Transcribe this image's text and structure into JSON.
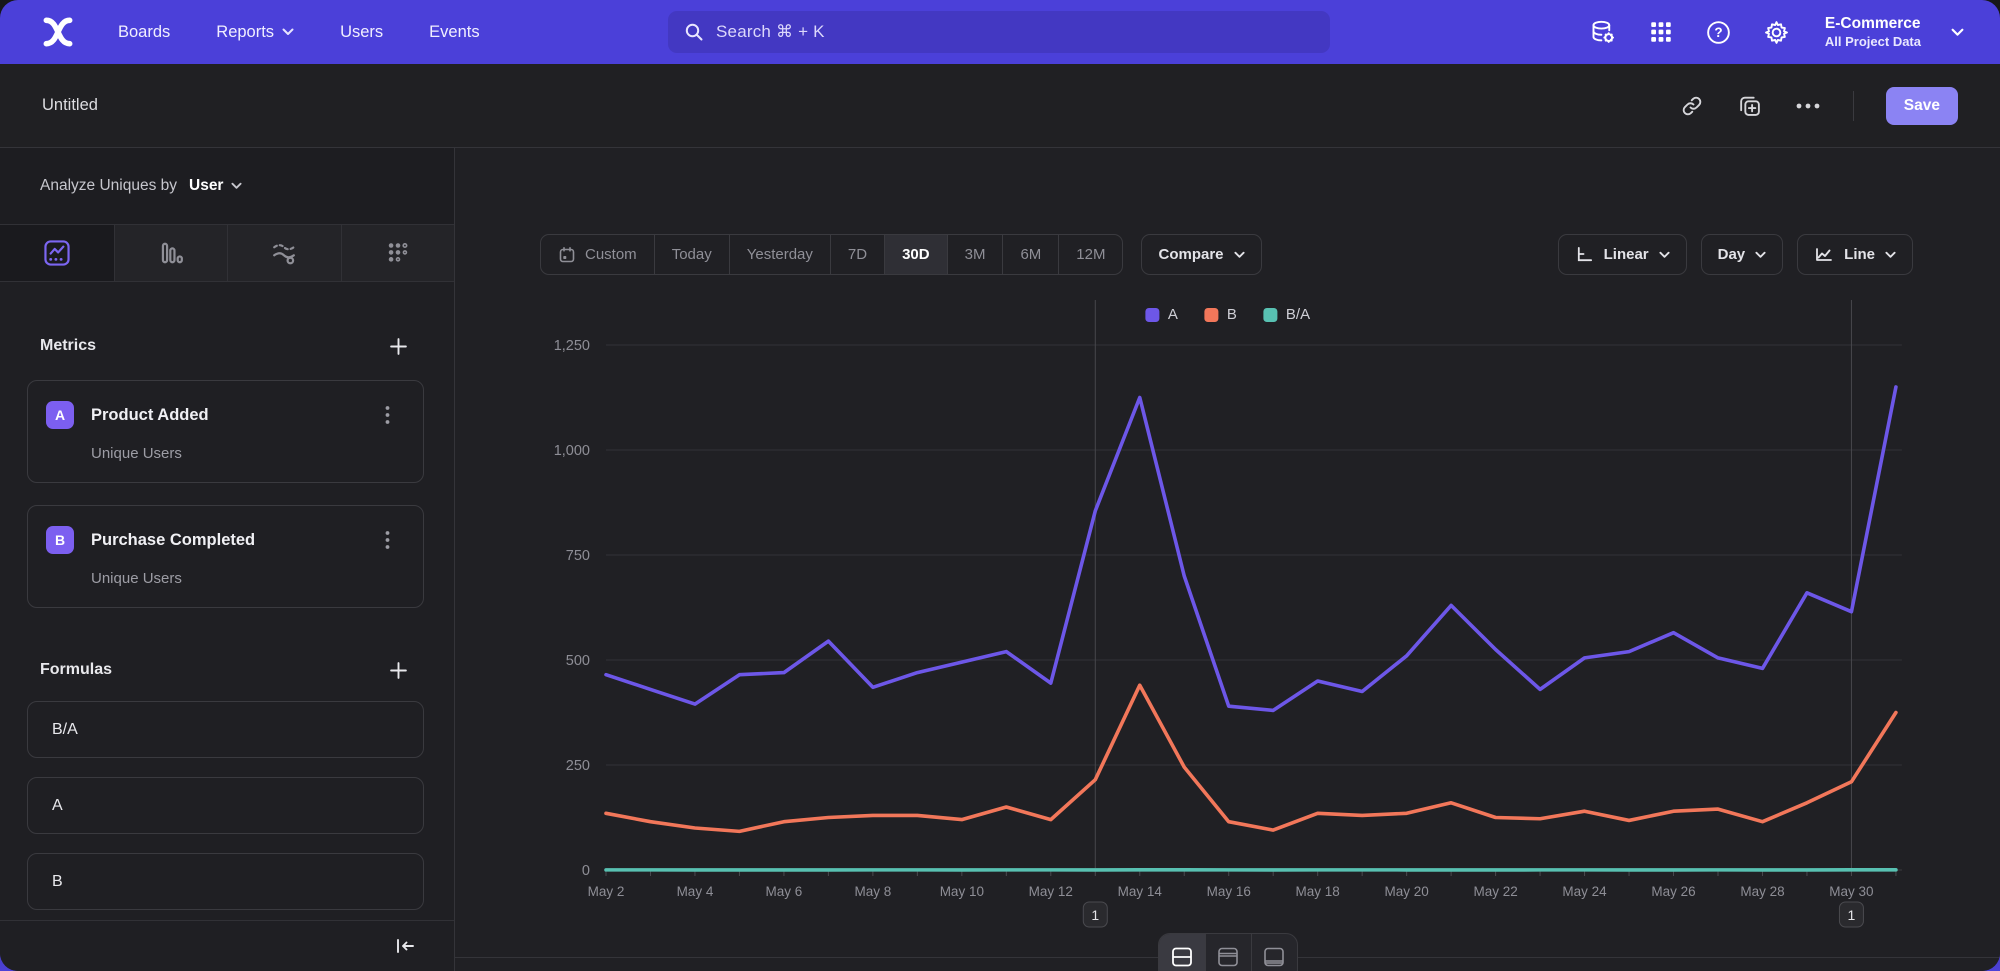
{
  "topnav": {
    "items": [
      "Boards",
      "Reports",
      "Users",
      "Events"
    ],
    "search_placeholder": "Search  ⌘ + K",
    "project_name": "E-Commerce",
    "project_scope": "All Project Data"
  },
  "report_header": {
    "title": "Untitled",
    "save_label": "Save"
  },
  "sidebar": {
    "analyze_prefix": "Analyze Uniques by",
    "analyze_value": "User",
    "metrics": {
      "title": "Metrics",
      "items": [
        {
          "letter": "A",
          "name": "Product Added",
          "sub": "Unique Users"
        },
        {
          "letter": "B",
          "name": "Purchase Completed",
          "sub": "Unique Users"
        }
      ]
    },
    "formulas": {
      "title": "Formulas",
      "items": [
        "B/A",
        "A",
        "B"
      ]
    }
  },
  "toolbar": {
    "ranges": [
      "Custom",
      "Today",
      "Yesterday",
      "7D",
      "30D",
      "3M",
      "6M",
      "12M"
    ],
    "selected_range": "30D",
    "compare_label": "Compare",
    "scale_label": "Linear",
    "interval_label": "Day",
    "chart_type_label": "Line"
  },
  "colors": {
    "series_a": "#6d57e8",
    "series_b": "#f2775a",
    "series_ba": "#58c1b2",
    "accent": "#7c66f2",
    "save_button": "#8b83f3",
    "topbar": "#4b40d9"
  },
  "chart_data": {
    "type": "line",
    "x": [
      "May 2",
      "May 3",
      "May 4",
      "May 5",
      "May 6",
      "May 7",
      "May 8",
      "May 9",
      "May 10",
      "May 11",
      "May 12",
      "May 13",
      "May 14",
      "May 15",
      "May 16",
      "May 17",
      "May 18",
      "May 19",
      "May 20",
      "May 21",
      "May 22",
      "May 23",
      "May 24",
      "May 25",
      "May 26",
      "May 27",
      "May 28",
      "May 29",
      "May 30",
      "May 31"
    ],
    "x_tick_labels": [
      "May 2",
      "May 4",
      "May 6",
      "May 8",
      "May 10",
      "May 12",
      "May 14",
      "May 16",
      "May 18",
      "May 20",
      "May 22",
      "May 24",
      "May 26",
      "May 28",
      "May 30"
    ],
    "series": [
      {
        "name": "A",
        "color": "#6d57e8",
        "values": [
          465,
          430,
          395,
          465,
          470,
          545,
          435,
          470,
          495,
          520,
          445,
          855,
          1125,
          700,
          390,
          380,
          450,
          425,
          510,
          630,
          525,
          430,
          505,
          520,
          565,
          505,
          480,
          660,
          615,
          1150
        ]
      },
      {
        "name": "B",
        "color": "#f2775a",
        "values": [
          135,
          115,
          100,
          92,
          115,
          125,
          130,
          130,
          120,
          150,
          120,
          215,
          440,
          245,
          115,
          95,
          135,
          130,
          135,
          160,
          125,
          122,
          140,
          118,
          140,
          145,
          115,
          160,
          210,
          375
        ]
      },
      {
        "name": "B/A",
        "color": "#58c1b2",
        "values": [
          0.29,
          0.27,
          0.25,
          0.2,
          0.24,
          0.23,
          0.3,
          0.28,
          0.24,
          0.29,
          0.27,
          0.25,
          0.39,
          0.35,
          0.29,
          0.25,
          0.3,
          0.31,
          0.26,
          0.25,
          0.24,
          0.28,
          0.28,
          0.23,
          0.25,
          0.29,
          0.24,
          0.24,
          0.34,
          0.33
        ]
      }
    ],
    "ylim": [
      0,
      1250
    ],
    "yticks": [
      "0",
      "250",
      "500",
      "750",
      "1,000",
      "1,250"
    ],
    "ytick_values": [
      0,
      250,
      500,
      750,
      1000,
      1250
    ],
    "annotations": [
      {
        "label": "1",
        "x": "May 13"
      },
      {
        "label": "1",
        "x": "May 30"
      }
    ],
    "legend_position": "top-center",
    "grid": "horizontal"
  }
}
